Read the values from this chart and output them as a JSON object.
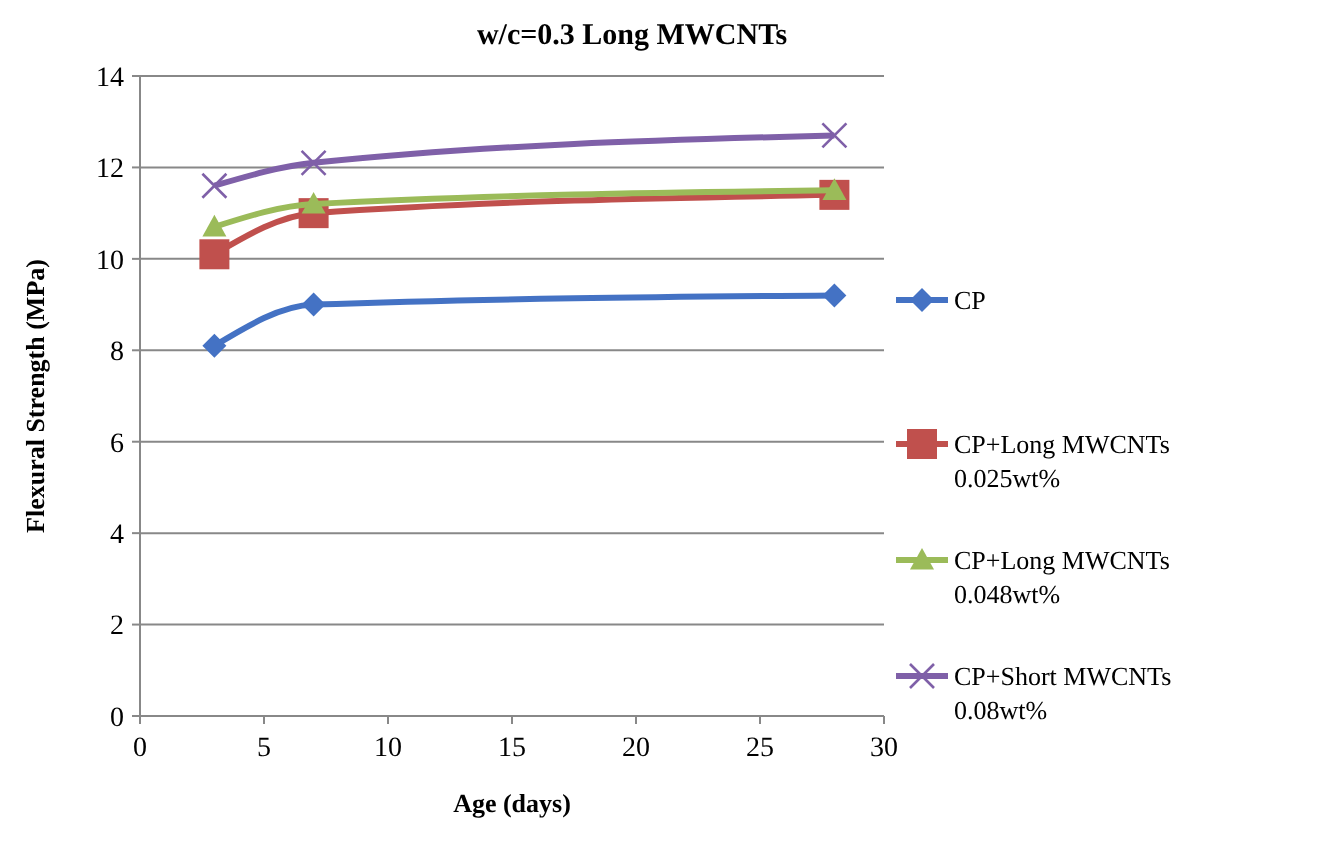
{
  "chart_data": {
    "type": "line",
    "title": "w/c=0.3 Long MWCNTs",
    "xlabel": "Age (days)",
    "ylabel": "Flexural Strength (MPa)",
    "x": [
      3,
      7,
      28
    ],
    "series": [
      {
        "name": "CP",
        "color": "#4472c4",
        "marker": "diamond",
        "values": [
          8.1,
          9.0,
          9.2
        ]
      },
      {
        "name": "CP+Long MWCNTs 0.025wt%",
        "color": "#c0504d",
        "marker": "square",
        "values": [
          10.1,
          11.0,
          11.4
        ]
      },
      {
        "name": "CP+Long MWCNTs 0.048wt%",
        "color": "#9bbb59",
        "marker": "triangle",
        "values": [
          10.7,
          11.2,
          11.5
        ]
      },
      {
        "name": "CP+Short MWCNTs 0.08wt%",
        "color": "#7f60a8",
        "marker": "cross",
        "values": [
          11.6,
          12.1,
          12.7
        ]
      }
    ],
    "xlim": [
      0,
      30
    ],
    "xticks": [
      0,
      5,
      10,
      15,
      20,
      25,
      30
    ],
    "ylim": [
      0,
      14
    ],
    "yticks": [
      0,
      2,
      4,
      6,
      8,
      10,
      12,
      14
    ],
    "grid": "y",
    "legend": "right"
  }
}
